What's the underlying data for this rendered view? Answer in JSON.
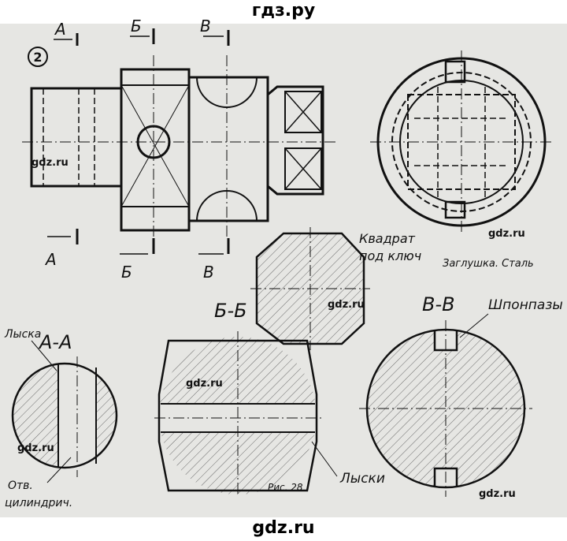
{
  "header": {
    "site": "гдз.ру"
  },
  "footer": {
    "site": "gdz.ru"
  },
  "figure": {
    "number": "2",
    "section_marks": {
      "a": "А",
      "b": "Б",
      "v": "В"
    },
    "plug_caption": "Заглушка. Сталь",
    "square_note_line1": "Квадрат",
    "square_note_line2": "под ключ",
    "section_aa_title": "А-А",
    "section_bb_title": "Б-Б",
    "section_vv_title": "В-В",
    "flat_label": "Лыска",
    "hole_label_line1": "Отв.",
    "hole_label_line2": "цилиндрич.",
    "flats_label": "Лыски",
    "keyways_label": "Шпонпазы",
    "figure_caption": "Рис. 28",
    "watermark": "gdz.ru"
  }
}
